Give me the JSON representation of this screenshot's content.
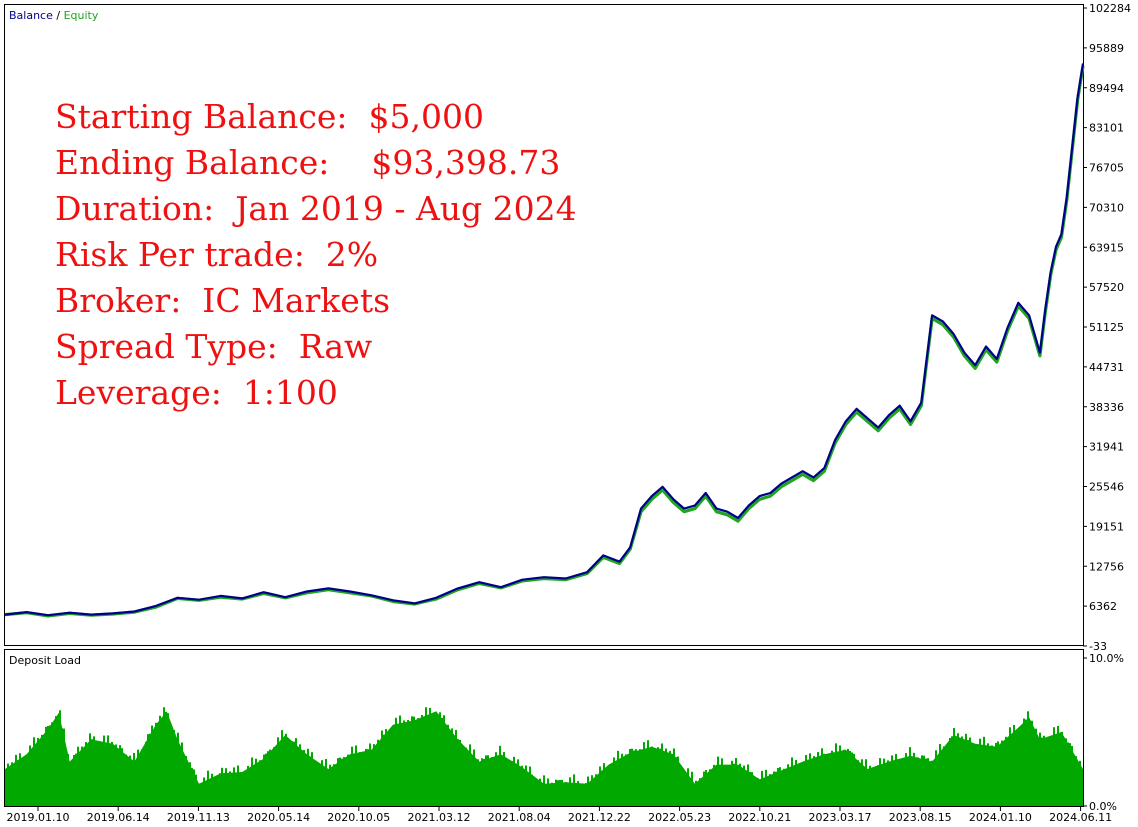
{
  "legend": {
    "balance_label": "Balance",
    "separator": " / ",
    "equity_label": "Equity",
    "balance_color": "#00008b",
    "equity_color": "#1fa51f"
  },
  "annotation": {
    "color": "#ee1111",
    "lines": [
      "Starting Balance:  $5,000",
      "Ending Balance:    $93,398.73",
      "Duration:  Jan 2019 - Aug 2024",
      "Risk Per trade:  2%",
      "Broker:  IC Markets",
      "Spread Type:  Raw",
      "Leverage:  1:100"
    ]
  },
  "chart_data": [
    {
      "type": "line",
      "legend": [
        "Balance",
        "Equity"
      ],
      "ylim": [
        -33,
        102284
      ],
      "yticks": [
        "102284",
        "95889",
        "89494",
        "83101",
        "76705",
        "70310",
        "63915",
        "57520",
        "51125",
        "44731",
        "38336",
        "31941",
        "25546",
        "19151",
        "12756",
        "6362",
        "-33"
      ],
      "grid": false,
      "x": [
        0,
        2,
        4,
        6,
        8,
        10,
        12,
        14,
        16,
        18,
        20,
        22,
        24,
        26,
        28,
        30,
        32,
        34,
        36,
        38,
        40,
        42,
        44,
        46,
        48,
        50,
        52,
        54,
        55.5,
        57,
        58,
        59,
        60,
        61,
        62,
        63,
        64,
        65,
        66,
        67,
        68,
        69,
        70,
        71,
        72,
        73,
        74,
        75,
        76,
        77,
        78,
        79,
        80,
        81,
        82,
        83,
        84,
        85,
        86,
        87,
        88,
        89,
        90,
        91,
        92,
        93,
        94,
        95,
        96,
        96.5,
        97,
        97.5,
        98,
        98.5,
        99,
        99.5,
        100
      ],
      "series": [
        {
          "name": "Balance",
          "color": "#00008b",
          "values": [
            5000,
            5400,
            4900,
            5300,
            5000,
            5200,
            5500,
            6400,
            7700,
            7400,
            8000,
            7600,
            8600,
            7800,
            8700,
            9200,
            8700,
            8100,
            7300,
            6800,
            7700,
            9200,
            10200,
            9400,
            10600,
            11000,
            10800,
            11800,
            14500,
            13500,
            15800,
            22000,
            24000,
            25500,
            23500,
            22000,
            22500,
            24500,
            22000,
            21500,
            20500,
            22500,
            24000,
            24500,
            26000,
            27000,
            28000,
            27000,
            28500,
            33000,
            36000,
            38000,
            36500,
            35000,
            37000,
            38500,
            36000,
            39000,
            53000,
            52000,
            50000,
            47000,
            45000,
            48000,
            46000,
            51000,
            55000,
            53000,
            47000,
            54000,
            60000,
            64000,
            66000,
            72000,
            80000,
            88000,
            93398
          ]
        },
        {
          "name": "Equity",
          "color": "#1fa51f",
          "values": [
            5000,
            5300,
            4800,
            5200,
            4900,
            5100,
            5400,
            6200,
            7600,
            7300,
            7800,
            7500,
            8400,
            7700,
            8500,
            9000,
            8500,
            8000,
            7100,
            6700,
            7500,
            9000,
            10000,
            9300,
            10400,
            10800,
            10600,
            11600,
            14200,
            13200,
            15500,
            21500,
            23500,
            25000,
            23000,
            21500,
            22000,
            24000,
            21500,
            21000,
            20000,
            22000,
            23500,
            24000,
            25500,
            26500,
            27500,
            26500,
            28000,
            32500,
            35500,
            37500,
            36000,
            34500,
            36500,
            38000,
            35500,
            38500,
            52500,
            51500,
            49500,
            46500,
            44500,
            47500,
            45500,
            50500,
            54500,
            52500,
            46500,
            53500,
            59500,
            63500,
            65500,
            71500,
            79500,
            87500,
            93000
          ]
        }
      ]
    },
    {
      "type": "area",
      "title": "Deposit Load",
      "ylim": [
        0,
        10
      ],
      "yticks": [
        "10.0%",
        "0.0%"
      ],
      "color": "#00a800",
      "x": [
        0,
        2,
        4,
        5,
        6,
        8,
        10,
        12,
        14,
        15,
        16,
        18,
        20,
        22,
        24,
        26,
        28,
        30,
        32,
        34,
        36,
        38,
        40,
        42,
        44,
        46,
        48,
        50,
        52,
        54,
        56,
        58,
        60,
        62,
        64,
        66,
        68,
        70,
        72,
        74,
        76,
        78,
        80,
        82,
        84,
        86,
        88,
        90,
        92,
        94,
        95,
        96,
        98,
        100
      ],
      "values": [
        2.5,
        3.5,
        5.2,
        6.3,
        3.0,
        4.5,
        4.2,
        3.0,
        5.5,
        6.4,
        4.5,
        1.5,
        2.2,
        2.3,
        3.2,
        4.8,
        3.5,
        2.5,
        3.5,
        3.8,
        5.5,
        5.8,
        6.4,
        4.5,
        3.0,
        3.5,
        2.6,
        1.5,
        1.6,
        1.5,
        2.8,
        3.6,
        4.0,
        3.5,
        1.5,
        2.8,
        2.8,
        1.8,
        2.4,
        3.0,
        3.5,
        3.8,
        2.5,
        3.0,
        3.4,
        3.0,
        4.8,
        4.2,
        4.0,
        5.3,
        6.0,
        4.5,
        5.0,
        2.5
      ]
    }
  ],
  "xaxis": {
    "tick_labels": [
      "2019.01.10",
      "2019.06.14",
      "2019.11.13",
      "2020.05.14",
      "2020.10.05",
      "2021.03.12",
      "2021.08.04",
      "2021.12.22",
      "2022.05.23",
      "2022.10.21",
      "2023.03.17",
      "2023.08.15",
      "2024.01.10",
      "2024.06.11"
    ]
  }
}
